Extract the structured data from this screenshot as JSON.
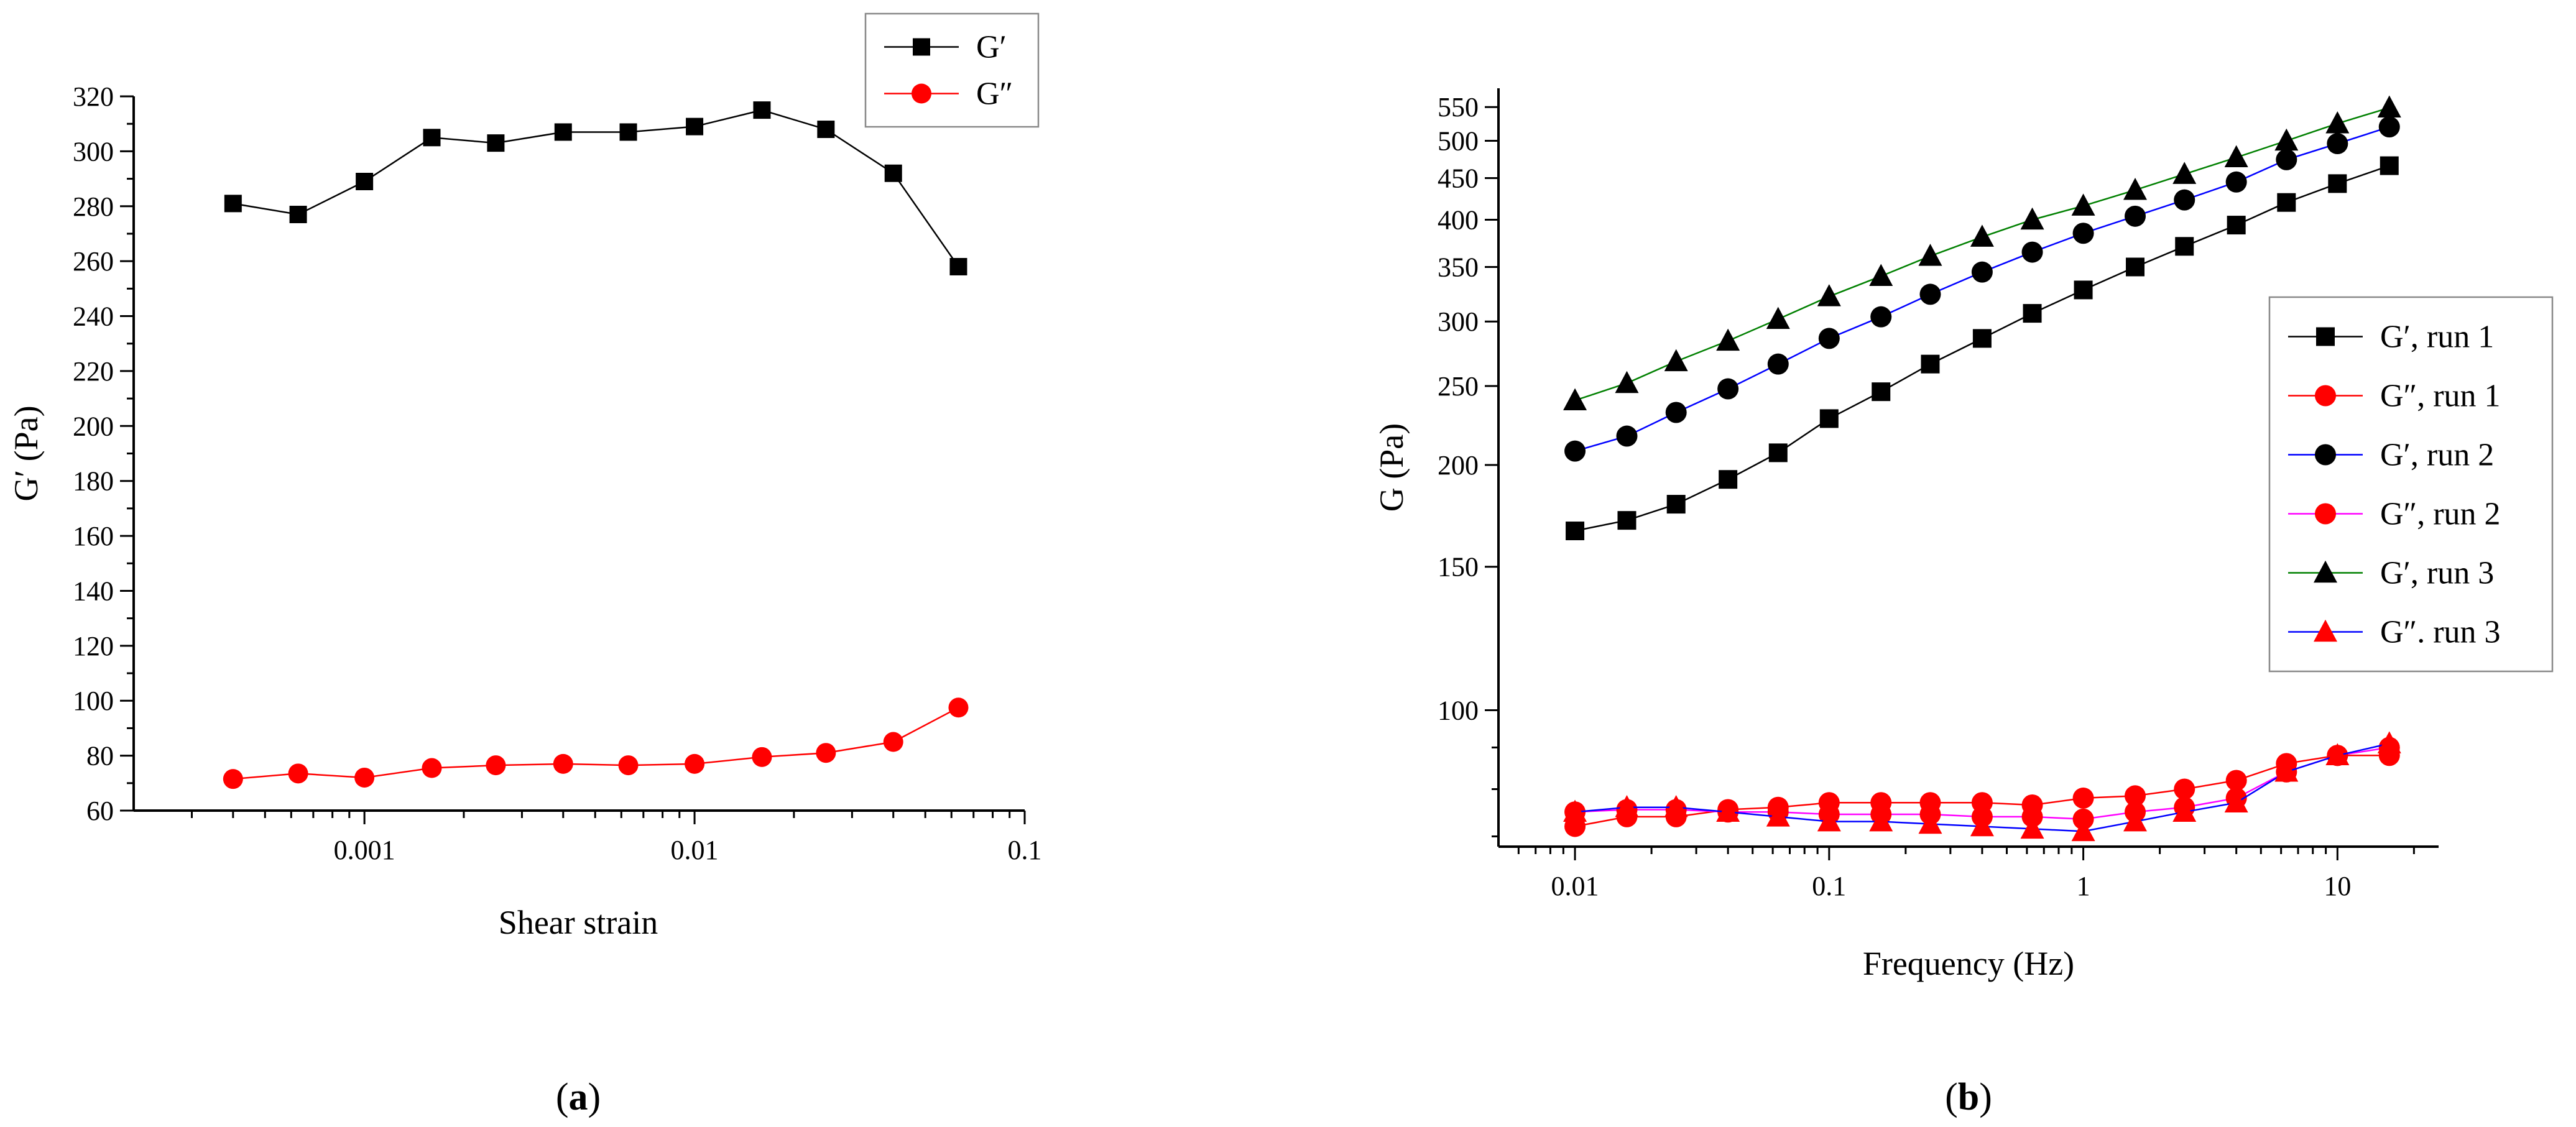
{
  "chart_data": [
    {
      "type": "line",
      "panel_label": "(a)",
      "panel_letter": "a",
      "xlabel": "Shear strain",
      "ylabel": "G′ (Pa)",
      "xscale": "log",
      "xlim": [
        0.0002,
        0.1
      ],
      "ylim": [
        60,
        320
      ],
      "xticks": [
        0.001,
        0.01,
        0.1
      ],
      "xtick_labels": [
        "0.001",
        "0.01",
        "0.1"
      ],
      "yticks": [
        60,
        80,
        100,
        120,
        140,
        160,
        180,
        200,
        220,
        240,
        260,
        280,
        300,
        320
      ],
      "ytick_labels": [
        "60",
        "80",
        "100",
        "120",
        "140",
        "160",
        "180",
        "200",
        "220",
        "240",
        "260",
        "280",
        "300",
        "320"
      ],
      "legend_position": "top-right",
      "x": [
        0.0004,
        0.00063,
        0.001,
        0.0016,
        0.0025,
        0.004,
        0.0063,
        0.01,
        0.016,
        0.025,
        0.04,
        0.063
      ],
      "series": [
        {
          "name": "G′",
          "color": "#000000",
          "marker": "square",
          "values": [
            281,
            277,
            289,
            305,
            303,
            307,
            307,
            309,
            315,
            308,
            292,
            258
          ]
        },
        {
          "name": "G″",
          "color": "#ff0000",
          "marker": "circle",
          "values": [
            71.5,
            73.5,
            72,
            75.5,
            76.5,
            77,
            76.5,
            77,
            79.5,
            81,
            85,
            97.5
          ]
        }
      ]
    },
    {
      "type": "line",
      "panel_label": "(b)",
      "panel_letter": "b",
      "xlabel": "Frequency (Hz)",
      "ylabel": "G (Pa)",
      "xscale": "log",
      "yscale": "log",
      "xlim": [
        0.005,
        25
      ],
      "ylim": [
        68,
        580
      ],
      "xticks": [
        0.01,
        0.1,
        1,
        10
      ],
      "xtick_labels": [
        "0.01",
        "0.1",
        "1",
        "10"
      ],
      "yticks": [
        100,
        150,
        200,
        250,
        300,
        350,
        400,
        450,
        500,
        550
      ],
      "ytick_labels": [
        "100",
        "150",
        "200",
        "250",
        "300",
        "350",
        "400",
        "450",
        "500",
        "550"
      ],
      "legend_position": "right",
      "x": [
        0.01,
        0.016,
        0.025,
        0.04,
        0.063,
        0.1,
        0.16,
        0.25,
        0.4,
        0.63,
        1,
        1.6,
        2.5,
        4,
        6.3,
        10,
        16
      ],
      "series": [
        {
          "name": "G′, run 1",
          "color": "#000000",
          "marker": "square",
          "values": [
            166,
            171,
            179,
            192,
            207,
            228,
            246,
            266,
            286,
            307,
            328,
            350,
            371,
            394,
            420,
            443,
            466
          ]
        },
        {
          "name": "G″, run 1",
          "color": "#ff0000",
          "marker": "circle",
          "values": [
            72,
            74,
            74,
            75.5,
            76,
            77,
            77,
            77,
            77,
            76.5,
            78,
            78.5,
            80,
            82,
            86,
            88,
            88
          ]
        },
        {
          "name": "G′, run 2",
          "color": "#0000ff",
          "marker": "circle",
          "values": [
            208,
            217,
            232,
            248,
            266,
            286,
            304,
            324,
            345,
            365,
            385,
            404,
            423,
            445,
            474,
            496,
            520
          ]
        },
        {
          "name": "G″, run 2",
          "color": "#ff00ff",
          "marker": "circle",
          "values": [
            75,
            75.5,
            75.5,
            75,
            75,
            74.5,
            74.5,
            74.5,
            74,
            74,
            73.5,
            75,
            76,
            78,
            84,
            88,
            90
          ]
        },
        {
          "name": "G′, run 3",
          "color": "#008000",
          "marker": "triangle",
          "values": [
            240,
            252,
            268,
            284,
            302,
            322,
            341,
            361,
            381,
            400,
            416,
            435,
            455,
            477,
            500,
            525,
            549
          ]
        },
        {
          "name": "G″. run 3",
          "color": "#0000ff",
          "marker": "triangle",
          "values": [
            75,
            76,
            76,
            75,
            74,
            73,
            73,
            72.5,
            72,
            71.5,
            71,
            73,
            75,
            77,
            84,
            88,
            91
          ]
        }
      ]
    }
  ]
}
